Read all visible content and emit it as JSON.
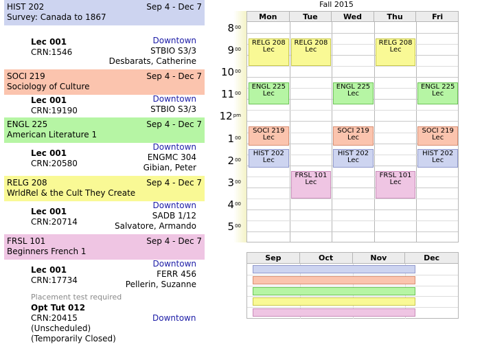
{
  "colors": {
    "HIST 202": {
      "bg": "#cdd4f0",
      "border": "#8f98cc"
    },
    "SOCI 219": {
      "bg": "#fbc4ae",
      "border": "#d68e72"
    },
    "ENGL 225": {
      "bg": "#b6f5a4",
      "border": "#6cc256"
    },
    "RELG 208": {
      "bg": "#f9f995",
      "border": "#c9c94c"
    },
    "FRSL 101": {
      "bg": "#efc5e3",
      "border": "#c98cb9"
    }
  },
  "courses": [
    {
      "code": "HIST 202",
      "dates": "Sep 4 - Dec 7",
      "title": "Survey: Canada to 1867",
      "section": {
        "type": "Lec 001",
        "crn": "CRN:1546",
        "campus": "Downtown",
        "room": "STBIO S3/3",
        "instructor": "Desbarats, Catherine"
      }
    },
    {
      "code": "SOCI 219",
      "dates": "Sep 4 - Dec 7",
      "title": "Sociology of Culture",
      "section": {
        "type": "Lec 001",
        "crn": "CRN:19190",
        "campus": "Downtown",
        "room": "STBIO S3/3",
        "instructor": ""
      }
    },
    {
      "code": "ENGL 225",
      "dates": "Sep 4 - Dec 7",
      "title": "American Literature 1",
      "section": {
        "type": "Lec 001",
        "crn": "CRN:20580",
        "campus": "Downtown",
        "room": "ENGMC 304",
        "instructor": "Gibian, Peter"
      }
    },
    {
      "code": "RELG 208",
      "dates": "Sep 4 - Dec 7",
      "title": "WrldRel & the Cult They Create",
      "section": {
        "type": "Lec 001",
        "crn": "CRN:20714",
        "campus": "Downtown",
        "room": "SADB 1/12",
        "instructor": "Salvatore, Armando"
      }
    },
    {
      "code": "FRSL 101",
      "dates": "Sep 4 - Dec 7",
      "title": "Beginners French 1",
      "section": {
        "type": "Lec 001",
        "crn": "CRN:17734",
        "campus": "Downtown",
        "room": "FERR 456",
        "instructor": "Pellerin, Suzanne"
      }
    }
  ],
  "extra_section": {
    "note": "Placement test required",
    "type": "Opt Tut 012",
    "crn": "CRN:20415",
    "campus": "Downtown",
    "status1": "(Unscheduled)",
    "status2": "(Temporarily Closed)"
  },
  "schedule": {
    "term": "Fall 2015",
    "days": [
      "Mon",
      "Tue",
      "Wed",
      "Thu",
      "Fri"
    ],
    "hours": [
      {
        "h": "8",
        "s": "00"
      },
      {
        "h": "9",
        "s": "00"
      },
      {
        "h": "10",
        "s": "00"
      },
      {
        "h": "11",
        "s": "00"
      },
      {
        "h": "12",
        "s": "pm"
      },
      {
        "h": "1",
        "s": "00"
      },
      {
        "h": "2",
        "s": "00"
      },
      {
        "h": "3",
        "s": "00"
      },
      {
        "h": "4",
        "s": "00"
      },
      {
        "h": "5",
        "s": "00"
      }
    ],
    "events": [
      {
        "code": "RELG 208",
        "type": "Lec",
        "day": 0,
        "start": 8.5,
        "end": 9.75
      },
      {
        "code": "RELG 208",
        "type": "Lec",
        "day": 1,
        "start": 8.5,
        "end": 9.75
      },
      {
        "code": "RELG 208",
        "type": "Lec",
        "day": 3,
        "start": 8.5,
        "end": 9.75
      },
      {
        "code": "ENGL 225",
        "type": "Lec",
        "day": 0,
        "start": 10.5,
        "end": 11.5
      },
      {
        "code": "ENGL 225",
        "type": "Lec",
        "day": 2,
        "start": 10.5,
        "end": 11.5
      },
      {
        "code": "ENGL 225",
        "type": "Lec",
        "day": 4,
        "start": 10.5,
        "end": 11.5
      },
      {
        "code": "SOCI 219",
        "type": "Lec",
        "day": 0,
        "start": 12.5,
        "end": 13.35
      },
      {
        "code": "SOCI 219",
        "type": "Lec",
        "day": 2,
        "start": 12.5,
        "end": 13.35
      },
      {
        "code": "SOCI 219",
        "type": "Lec",
        "day": 4,
        "start": 12.5,
        "end": 13.35
      },
      {
        "code": "HIST 202",
        "type": "Lec",
        "day": 0,
        "start": 13.5,
        "end": 14.35
      },
      {
        "code": "HIST 202",
        "type": "Lec",
        "day": 2,
        "start": 13.5,
        "end": 14.35
      },
      {
        "code": "HIST 202",
        "type": "Lec",
        "day": 4,
        "start": 13.5,
        "end": 14.35
      },
      {
        "code": "FRSL 101",
        "type": "Lec",
        "day": 1,
        "start": 14.5,
        "end": 15.75
      },
      {
        "code": "FRSL 101",
        "type": "Lec",
        "day": 3,
        "start": 14.5,
        "end": 15.75
      }
    ]
  },
  "timeline": {
    "months": [
      "Sep",
      "Oct",
      "Nov",
      "Dec"
    ],
    "bars": [
      {
        "code": "HIST 202",
        "from": "Sep 4",
        "to": "Dec 7"
      },
      {
        "code": "SOCI 219",
        "from": "Sep 4",
        "to": "Dec 7"
      },
      {
        "code": "ENGL 225",
        "from": "Sep 4",
        "to": "Dec 7"
      },
      {
        "code": "RELG 208",
        "from": "Sep 4",
        "to": "Dec 7"
      },
      {
        "code": "FRSL 101",
        "from": "Sep 4",
        "to": "Dec 7"
      }
    ]
  }
}
